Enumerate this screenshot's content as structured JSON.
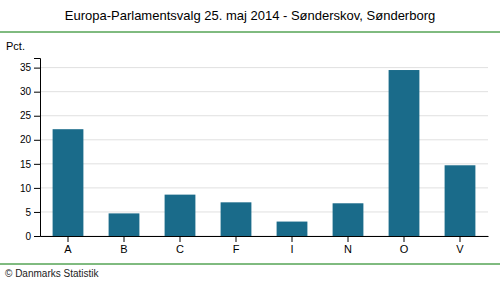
{
  "chart_data": {
    "type": "bar",
    "title": "Europa-Parlamentsvalg 25. maj 2014 - Sønderskov, Sønderborg",
    "ylabel": "Pct.",
    "annotations": [
      "© Danmarks Statistik"
    ],
    "categories": [
      "A",
      "B",
      "C",
      "F",
      "I",
      "N",
      "O",
      "V"
    ],
    "values": [
      22.2,
      4.7,
      8.6,
      7.0,
      3.0,
      6.8,
      34.5,
      14.7
    ],
    "color": "#1a6b8a",
    "ylim": [
      0,
      37
    ],
    "yticks": [
      0,
      5,
      10,
      15,
      20,
      25,
      30,
      35
    ],
    "grid": true
  }
}
